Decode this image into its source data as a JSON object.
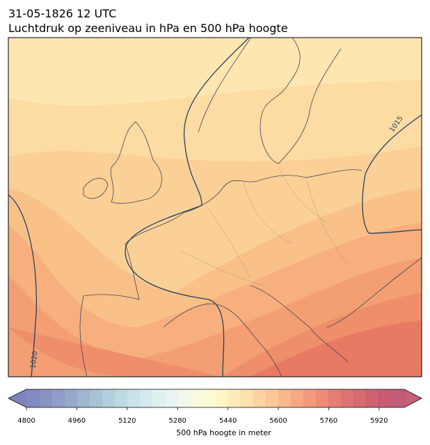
{
  "title": "31-05-1826 12 UTC",
  "subtitle": "Luchtdruk op zeeniveau in hPa en 500 hPa hoogte",
  "isobar_labels": [
    "1015",
    "1020"
  ],
  "colorbar": {
    "label": "500 hPa hoogte in meter",
    "lim": [
      4800,
      6000
    ],
    "ticks": [
      4800,
      4960,
      5120,
      5280,
      5440,
      5600,
      5760,
      5920
    ],
    "colors": [
      "#6c74b5",
      "#7280b9",
      "#7a8dbe",
      "#839ac3",
      "#8ea9c9",
      "#99b7cf",
      "#a6c6d7",
      "#b2d3de",
      "#bfdee6",
      "#cde6ec",
      "#d9edef",
      "#e4f2ee",
      "#eef6e6",
      "#f6f9da",
      "#fcfacc",
      "#fdf3bc",
      "#fde8ae",
      "#fddca0",
      "#fccd92",
      "#fbbd84",
      "#f9ab78",
      "#f6996d",
      "#f18765",
      "#eb775f",
      "#e1685b",
      "#d85b59",
      "#cf5058",
      "#c84759",
      "#c0405a",
      "#b8405e"
    ],
    "under_color": "#6670b0",
    "over_color": "#b84563"
  }
}
